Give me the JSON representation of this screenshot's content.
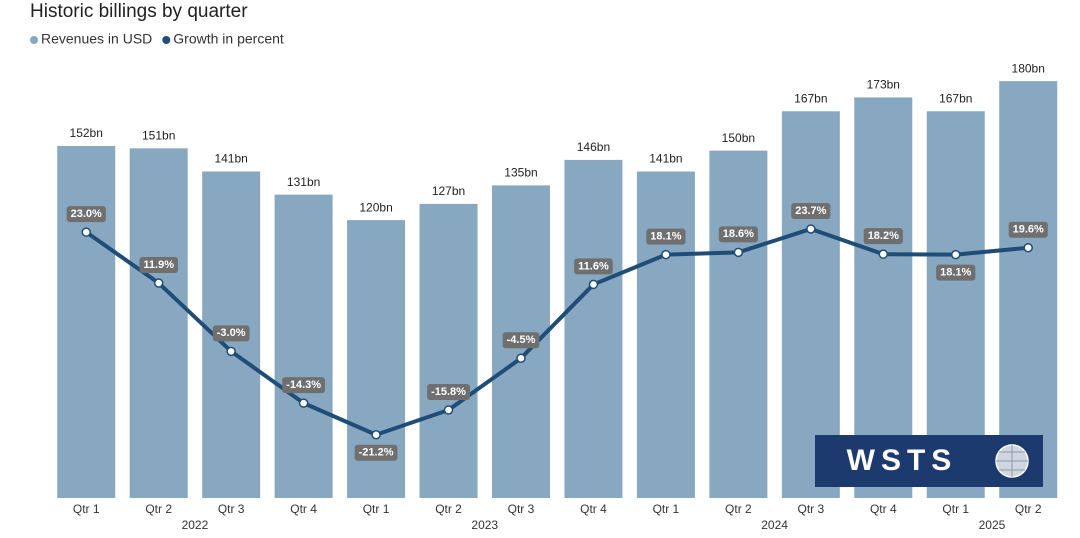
{
  "chart_data": {
    "type": "bar_line",
    "title": "Historic billings by quarter",
    "logo": "WSTS",
    "groups": [
      {
        "name": "2022",
        "categories": [
          "Qtr 1",
          "Qtr 2",
          "Qtr 3",
          "Qtr 4"
        ]
      },
      {
        "name": "2023",
        "categories": [
          "Qtr 1",
          "Qtr 2",
          "Qtr 3",
          "Qtr 4"
        ]
      },
      {
        "name": "2024",
        "categories": [
          "Qtr 1",
          "Qtr 2",
          "Qtr 3",
          "Qtr 4"
        ]
      },
      {
        "name": "2025",
        "categories": [
          "Qtr 1",
          "Qtr 2"
        ]
      }
    ],
    "series": [
      {
        "name": "Revenues in USD",
        "type": "bar",
        "color": "#88a8c1",
        "values": [
          152,
          151,
          141,
          131,
          120,
          127,
          135,
          146,
          141,
          150,
          167,
          173,
          167,
          180
        ],
        "value_labels": [
          "152bn",
          "151bn",
          "141bn",
          "131bn",
          "120bn",
          "127bn",
          "135bn",
          "146bn",
          "141bn",
          "150bn",
          "167bn",
          "173bn",
          "167bn",
          "180bn"
        ]
      },
      {
        "name": "Growth in percent",
        "type": "line",
        "axis": "y2",
        "color": "#1f4d78",
        "values": [
          23.0,
          11.9,
          -3.0,
          -14.3,
          -21.2,
          -15.8,
          -4.5,
          11.6,
          18.1,
          18.6,
          23.7,
          18.2,
          18.1,
          19.6
        ],
        "value_labels": [
          "23.0%",
          "11.9%",
          "-3.0%",
          "-14.3%",
          "-21.2%",
          "-15.8%",
          "-4.5%",
          "11.6%",
          "18.1%",
          "18.6%",
          "23.7%",
          "18.2%",
          "18.1%",
          "19.6%"
        ]
      }
    ],
    "ylim": [
      0,
      190
    ],
    "y2lim": [
      -35,
      61
    ]
  }
}
